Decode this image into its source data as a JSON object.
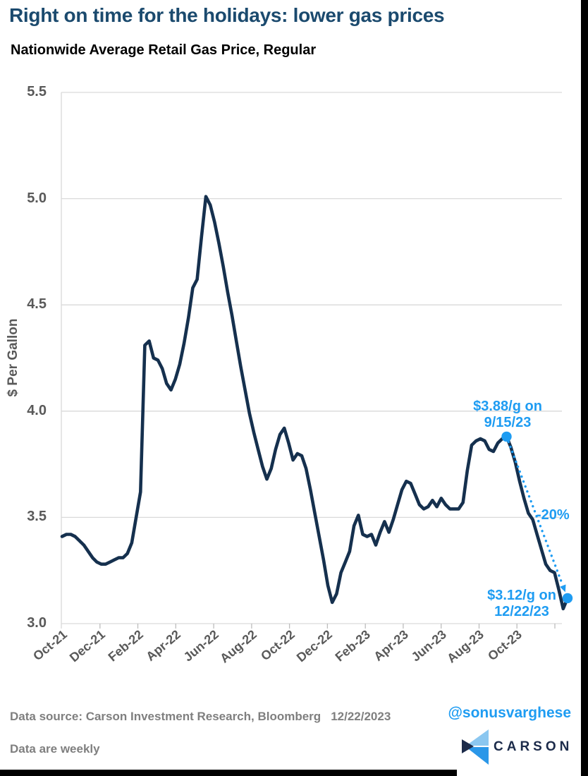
{
  "header": {
    "title": "Right on time for the holidays: lower gas prices",
    "subtitle": "Nationwide Average Retail Gas Price, Regular"
  },
  "chart_data": {
    "type": "line",
    "title": "Nationwide Average Retail Gas Price, Regular",
    "xlabel": "",
    "ylabel": "$ Per Gallon",
    "ylim": [
      3.0,
      5.5
    ],
    "ytick_values": [
      5.5,
      5.0,
      4.5,
      4.0,
      3.5,
      3.0
    ],
    "xtick_labels": [
      "Oct-21",
      "Dec-21",
      "Feb-22",
      "Apr-22",
      "Jun-22",
      "Aug-22",
      "Oct-22",
      "Dec-22",
      "Feb-23",
      "Apr-23",
      "Jun-23",
      "Aug-23",
      "Oct-23"
    ],
    "frequency": "weekly",
    "grid": true,
    "legend": "none",
    "series": [
      {
        "name": "Nationwide average retail gas price (regular), $/gallon",
        "values": [
          3.41,
          3.42,
          3.42,
          3.41,
          3.39,
          3.37,
          3.34,
          3.31,
          3.29,
          3.28,
          3.28,
          3.29,
          3.3,
          3.31,
          3.31,
          3.33,
          3.38,
          3.5,
          3.62,
          4.31,
          4.33,
          4.25,
          4.24,
          4.2,
          4.13,
          4.1,
          4.15,
          4.22,
          4.32,
          4.44,
          4.58,
          4.62,
          4.82,
          5.01,
          4.97,
          4.89,
          4.79,
          4.68,
          4.56,
          4.45,
          4.33,
          4.21,
          4.1,
          3.99,
          3.9,
          3.82,
          3.74,
          3.68,
          3.73,
          3.82,
          3.89,
          3.92,
          3.85,
          3.77,
          3.8,
          3.79,
          3.73,
          3.63,
          3.52,
          3.41,
          3.3,
          3.18,
          3.1,
          3.14,
          3.24,
          3.29,
          3.34,
          3.46,
          3.51,
          3.42,
          3.41,
          3.42,
          3.37,
          3.43,
          3.48,
          3.43,
          3.49,
          3.56,
          3.63,
          3.67,
          3.66,
          3.61,
          3.56,
          3.54,
          3.55,
          3.58,
          3.55,
          3.59,
          3.56,
          3.54,
          3.54,
          3.54,
          3.57,
          3.72,
          3.84,
          3.86,
          3.87,
          3.86,
          3.82,
          3.81,
          3.85,
          3.87,
          3.88,
          3.83,
          3.76,
          3.67,
          3.59,
          3.52,
          3.49,
          3.42,
          3.35,
          3.28,
          3.25,
          3.24,
          3.16,
          3.07,
          3.12
        ]
      }
    ],
    "annotations": {
      "peak": {
        "line1": "$3.88/g on",
        "line2": "9/15/23",
        "week_index": 102,
        "value": 3.88
      },
      "pct_change_label": "-20%",
      "end": {
        "line1": "$3.12/g on",
        "line2": "12/22/23",
        "week_index": 116,
        "value": 3.12
      }
    },
    "colors": {
      "line": "#15304E",
      "accent": "#1E9CF2",
      "grid": "#D9D9D9",
      "tick": "#BDBDBD",
      "axis_text": "#595959",
      "title": "#1B4A6E"
    }
  },
  "footer": {
    "source_label": "Data source: Carson Investment Research, Bloomberg",
    "date": "12/22/2023",
    "note": "Data are weekly"
  },
  "branding": {
    "handle": "@sonusvarghese",
    "logo_text": "CARSON",
    "logo_colors": {
      "light": "#8BC7F0",
      "mid": "#2B97E8",
      "navy": "#1C2B4A"
    }
  }
}
